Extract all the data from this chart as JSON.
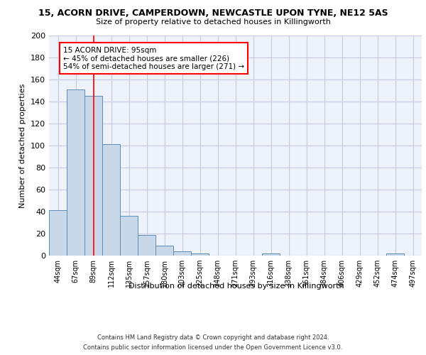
{
  "title_line1": "15, ACORN DRIVE, CAMPERDOWN, NEWCASTLE UPON TYNE, NE12 5AS",
  "title_line2": "Size of property relative to detached houses in Killingworth",
  "xlabel": "Distribution of detached houses by size in Killingworth",
  "ylabel": "Number of detached properties",
  "categories": [
    "44sqm",
    "67sqm",
    "89sqm",
    "112sqm",
    "135sqm",
    "157sqm",
    "180sqm",
    "203sqm",
    "225sqm",
    "248sqm",
    "271sqm",
    "293sqm",
    "316sqm",
    "338sqm",
    "361sqm",
    "384sqm",
    "406sqm",
    "429sqm",
    "452sqm",
    "474sqm",
    "497sqm"
  ],
  "values": [
    41,
    151,
    145,
    101,
    36,
    19,
    9,
    4,
    2,
    0,
    0,
    0,
    2,
    0,
    0,
    0,
    0,
    0,
    0,
    2,
    0
  ],
  "bar_color": "#c8d8e8",
  "bar_edge_color": "#5b8db8",
  "background_color": "#eef2fb",
  "grid_color": "#c8cce0",
  "annotation_text": "15 ACORN DRIVE: 95sqm\n← 45% of detached houses are smaller (226)\n54% of semi-detached houses are larger (271) →",
  "annotation_box_color": "white",
  "annotation_box_edge": "red",
  "red_line_x": 2,
  "ylim": [
    0,
    200
  ],
  "yticks": [
    0,
    20,
    40,
    60,
    80,
    100,
    120,
    140,
    160,
    180,
    200
  ],
  "footer_line1": "Contains HM Land Registry data © Crown copyright and database right 2024.",
  "footer_line2": "Contains public sector information licensed under the Open Government Licence v3.0."
}
